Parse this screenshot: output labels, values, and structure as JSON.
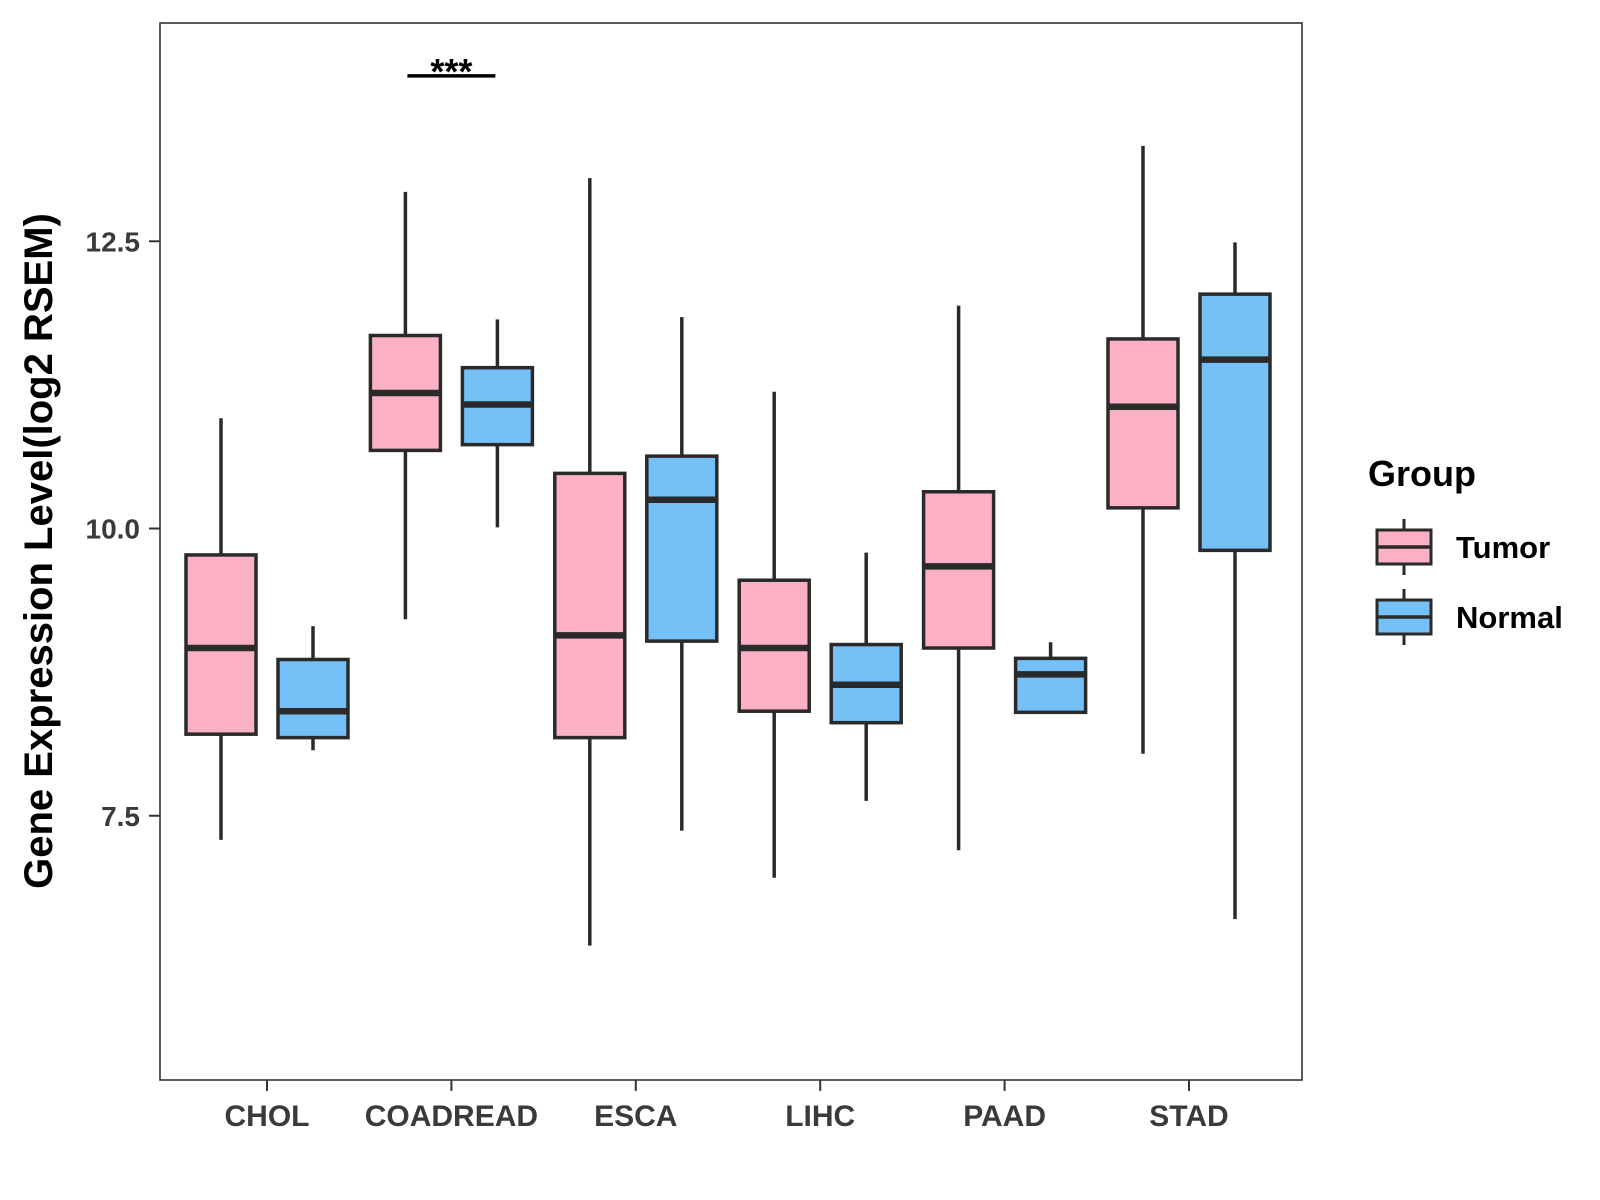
{
  "chart_data": {
    "type": "boxplot",
    "title": "",
    "xlabel": "",
    "ylabel": "Gene Expression Level(log2 RSEM)",
    "ylim": [
      5.2,
      14.4
    ],
    "yticks": [
      7.5,
      10.0,
      12.5
    ],
    "ytick_labels": [
      "7.5",
      "10.0",
      "12.5"
    ],
    "grid": false,
    "legend_position": "right",
    "legend_title": "Group",
    "categories": [
      "CHOL",
      "COADREAD",
      "ESCA",
      "LIHC",
      "PAAD",
      "STAD"
    ],
    "series": [
      {
        "name": "Tumor",
        "color": "#fbb1c3",
        "boxes": [
          {
            "category": "CHOL",
            "min": 7.29,
            "q1": 8.21,
            "median": 8.96,
            "q3": 9.77,
            "max": 10.96
          },
          {
            "category": "COADREAD",
            "min": 9.21,
            "q1": 10.68,
            "median": 11.18,
            "q3": 11.68,
            "max": 12.93
          },
          {
            "category": "ESCA",
            "min": 6.37,
            "q1": 8.18,
            "median": 9.07,
            "q3": 10.48,
            "max": 13.05
          },
          {
            "category": "LIHC",
            "min": 6.96,
            "q1": 8.41,
            "median": 8.96,
            "q3": 9.55,
            "max": 11.19
          },
          {
            "category": "PAAD",
            "min": 7.2,
            "q1": 8.96,
            "median": 9.67,
            "q3": 10.32,
            "max": 11.94
          },
          {
            "category": "STAD",
            "min": 8.04,
            "q1": 10.18,
            "median": 11.06,
            "q3": 11.65,
            "max": 13.33
          }
        ]
      },
      {
        "name": "Normal",
        "color": "#74c0f7",
        "boxes": [
          {
            "category": "CHOL",
            "min": 8.07,
            "q1": 8.18,
            "median": 8.41,
            "q3": 8.86,
            "max": 9.15
          },
          {
            "category": "COADREAD",
            "min": 10.01,
            "q1": 10.73,
            "median": 11.08,
            "q3": 11.4,
            "max": 11.82
          },
          {
            "category": "ESCA",
            "min": 7.37,
            "q1": 9.02,
            "median": 10.25,
            "q3": 10.63,
            "max": 11.84
          },
          {
            "category": "LIHC",
            "min": 7.63,
            "q1": 8.31,
            "median": 8.64,
            "q3": 8.99,
            "max": 9.79
          },
          {
            "category": "PAAD",
            "min": 8.4,
            "q1": 8.4,
            "median": 8.73,
            "q3": 8.87,
            "max": 9.01
          },
          {
            "category": "STAD",
            "min": 6.6,
            "q1": 9.81,
            "median": 11.47,
            "q3": 12.04,
            "max": 12.49
          }
        ]
      }
    ],
    "annotations": [
      {
        "category": "COADREAD",
        "text": "***",
        "y": 13.94
      }
    ]
  }
}
